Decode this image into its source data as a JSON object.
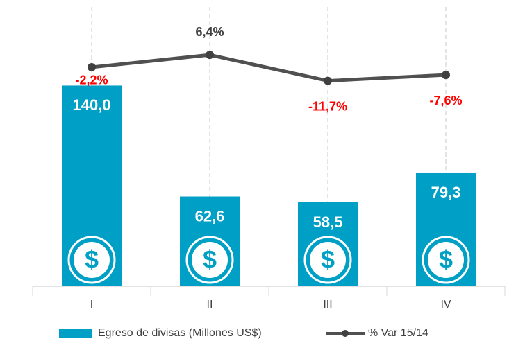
{
  "chart_data": {
    "type": "bar",
    "categories": [
      "I",
      "II",
      "III",
      "IV"
    ],
    "series": [
      {
        "name": "Egreso de divisas (Millones US$)",
        "type": "bar",
        "color": "#00a0c6",
        "values": [
          140.0,
          62.6,
          58.5,
          79.3
        ],
        "value_labels": [
          "140,0",
          "62,6",
          "58,5",
          "79,3"
        ]
      },
      {
        "name": "% Var 15/14",
        "type": "line",
        "axis": "y2",
        "color": "#505050",
        "values": [
          -2.2,
          6.4,
          -11.7,
          -7.6
        ],
        "value_labels": [
          "-2,2%",
          "6,4%",
          "-11,7%",
          "-7,6%"
        ]
      }
    ],
    "ylim": [
      0,
      190
    ],
    "y2lim": [
      -155,
      35
    ],
    "legend": "bottom"
  }
}
